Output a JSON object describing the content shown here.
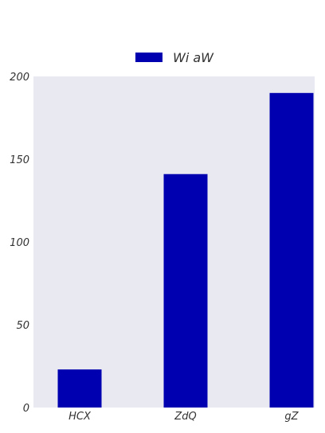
{
  "chart_data": {
    "type": "bar",
    "categories": [
      "HCX",
      "ZdQ",
      "gZ"
    ],
    "series": [
      {
        "name": "Wi aW",
        "values": [
          23,
          141,
          190
        ],
        "color": "#0000b0"
      }
    ],
    "ylim": [
      0,
      200
    ],
    "yticks": [
      0,
      50,
      100,
      150,
      200
    ],
    "title": "",
    "xlabel": "",
    "ylabel": "",
    "grid": false,
    "plot_background": "#e9e9f2",
    "legend_position": "top-center"
  }
}
